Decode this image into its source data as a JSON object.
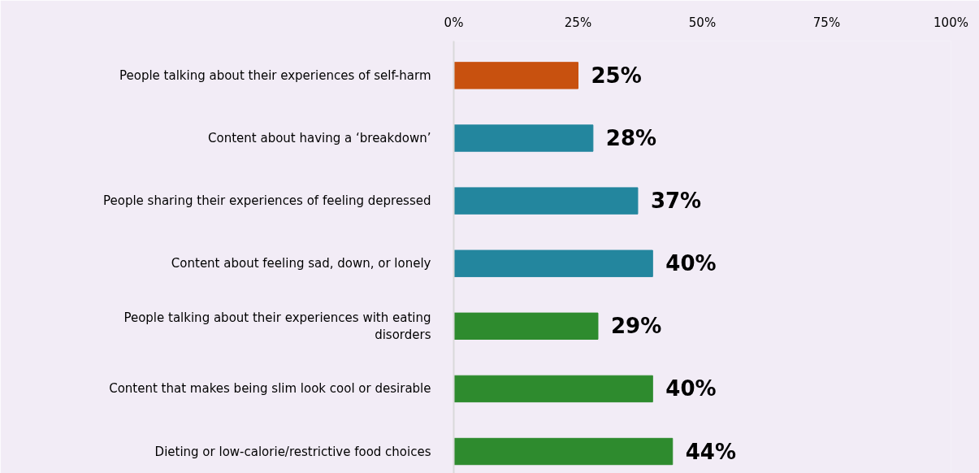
{
  "chart_data": {
    "type": "bar",
    "orientation": "horizontal",
    "categories": [
      "People talking about their experiences of self-harm",
      "Content about having a ‘breakdown’",
      "People sharing their experiences of feeling depressed",
      "Content about feeling sad, down, or lonely",
      "People talking about their experiences with eating disorders",
      "Content that makes being slim look cool or desirable",
      "Dieting or low-calorie/restrictive food choices"
    ],
    "values": [
      25,
      28,
      37,
      40,
      29,
      40,
      44
    ],
    "colors": [
      "#c8510f",
      "#23869e",
      "#23869e",
      "#23869e",
      "#2e8b2e",
      "#2e8b2e",
      "#2e8b2e"
    ],
    "value_labels": [
      "25%",
      "28%",
      "37%",
      "40%",
      "29%",
      "40%",
      "44%"
    ],
    "xlim": [
      0,
      100
    ],
    "xticks": [
      {
        "value": 0,
        "label": "0%"
      },
      {
        "value": 25,
        "label": "25%"
      },
      {
        "value": 50,
        "label": "50%"
      },
      {
        "value": 75,
        "label": "75%"
      },
      {
        "value": 100,
        "label": "100%"
      }
    ],
    "grid": false
  }
}
